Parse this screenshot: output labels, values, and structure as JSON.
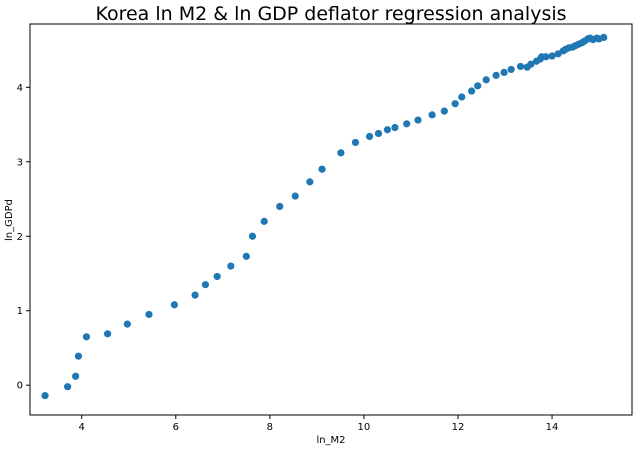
{
  "chart_data": {
    "type": "scatter",
    "title": "Korea ln M2 & ln GDP deflator regression analysis",
    "xlabel": "ln_M2",
    "ylabel": "ln_GDPd",
    "xlim": [
      2.9,
      15.7
    ],
    "ylim": [
      -0.4,
      4.85
    ],
    "xticks": [
      4,
      6,
      8,
      10,
      12,
      14
    ],
    "yticks": [
      0,
      1,
      2,
      3,
      4
    ],
    "grid": false,
    "marker_color": "#1f77b4",
    "series": [
      {
        "points": [
          [
            3.22,
            -0.14
          ],
          [
            3.7,
            -0.02
          ],
          [
            3.87,
            0.12
          ],
          [
            3.93,
            0.39
          ],
          [
            4.1,
            0.65
          ],
          [
            4.55,
            0.69
          ],
          [
            4.97,
            0.82
          ],
          [
            5.43,
            0.95
          ],
          [
            5.97,
            1.08
          ],
          [
            6.41,
            1.21
          ],
          [
            6.63,
            1.35
          ],
          [
            6.88,
            1.46
          ],
          [
            7.17,
            1.6
          ],
          [
            7.5,
            1.73
          ],
          [
            7.63,
            2.0
          ],
          [
            7.88,
            2.2
          ],
          [
            8.21,
            2.4
          ],
          [
            8.54,
            2.54
          ],
          [
            8.85,
            2.73
          ],
          [
            9.11,
            2.9
          ],
          [
            9.51,
            3.12
          ],
          [
            9.82,
            3.26
          ],
          [
            10.12,
            3.34
          ],
          [
            10.31,
            3.38
          ],
          [
            10.5,
            3.43
          ],
          [
            10.66,
            3.46
          ],
          [
            10.91,
            3.51
          ],
          [
            11.15,
            3.56
          ],
          [
            11.45,
            3.63
          ],
          [
            11.71,
            3.68
          ],
          [
            11.94,
            3.78
          ],
          [
            12.08,
            3.87
          ],
          [
            12.29,
            3.95
          ],
          [
            12.42,
            4.02
          ],
          [
            12.6,
            4.1
          ],
          [
            12.81,
            4.16
          ],
          [
            12.98,
            4.2
          ],
          [
            13.13,
            4.24
          ],
          [
            13.33,
            4.28
          ],
          [
            13.47,
            4.27
          ],
          [
            13.55,
            4.31
          ],
          [
            13.67,
            4.35
          ],
          [
            13.75,
            4.38
          ],
          [
            13.78,
            4.41
          ],
          [
            13.87,
            4.41
          ],
          [
            14.0,
            4.42
          ],
          [
            14.13,
            4.45
          ],
          [
            14.24,
            4.49
          ],
          [
            14.29,
            4.51
          ],
          [
            14.36,
            4.53
          ],
          [
            14.44,
            4.54
          ],
          [
            14.5,
            4.56
          ],
          [
            14.57,
            4.58
          ],
          [
            14.64,
            4.6
          ],
          [
            14.69,
            4.62
          ],
          [
            14.76,
            4.65
          ],
          [
            14.81,
            4.66
          ],
          [
            14.87,
            4.64
          ],
          [
            14.95,
            4.66
          ],
          [
            15.0,
            4.65
          ],
          [
            15.1,
            4.67
          ]
        ]
      }
    ]
  }
}
